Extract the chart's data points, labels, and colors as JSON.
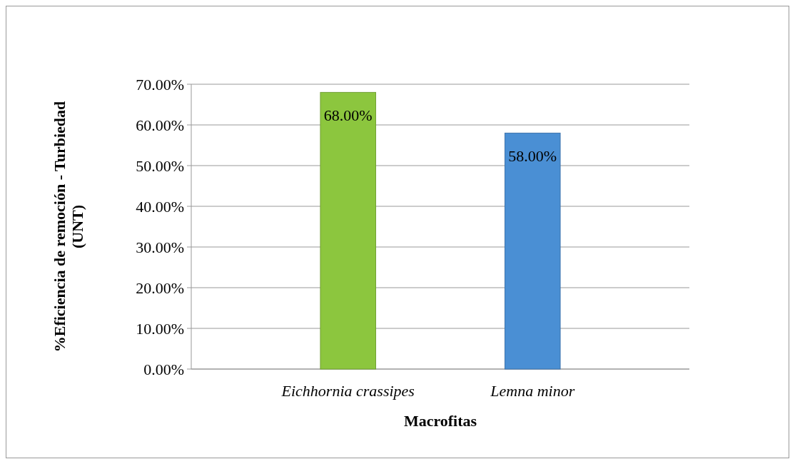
{
  "chart_data": {
    "type": "bar",
    "xlabel": "Macrofitas",
    "ylabel": "%Eficiencia de remoción - Turbiedad (UNT)",
    "categories": [
      "Eichhornia crassipes",
      "Lemna minor"
    ],
    "values": [
      68,
      58
    ],
    "colors": [
      "#8cc63e",
      "#4a8fd4"
    ],
    "value_labels": [
      "68.00%",
      "58.00%"
    ],
    "ylim": [
      0,
      70
    ],
    "yticks": [
      {
        "value": 0,
        "label": "0.00%"
      },
      {
        "value": 10,
        "label": "10.00%"
      },
      {
        "value": 20,
        "label": "20.00%"
      },
      {
        "value": 30,
        "label": "30.00%"
      },
      {
        "value": 40,
        "label": "40.00%"
      },
      {
        "value": 50,
        "label": "50.00%"
      },
      {
        "value": 60,
        "label": "60.00%"
      },
      {
        "value": 70,
        "label": "70.00%"
      }
    ],
    "grid": true
  }
}
